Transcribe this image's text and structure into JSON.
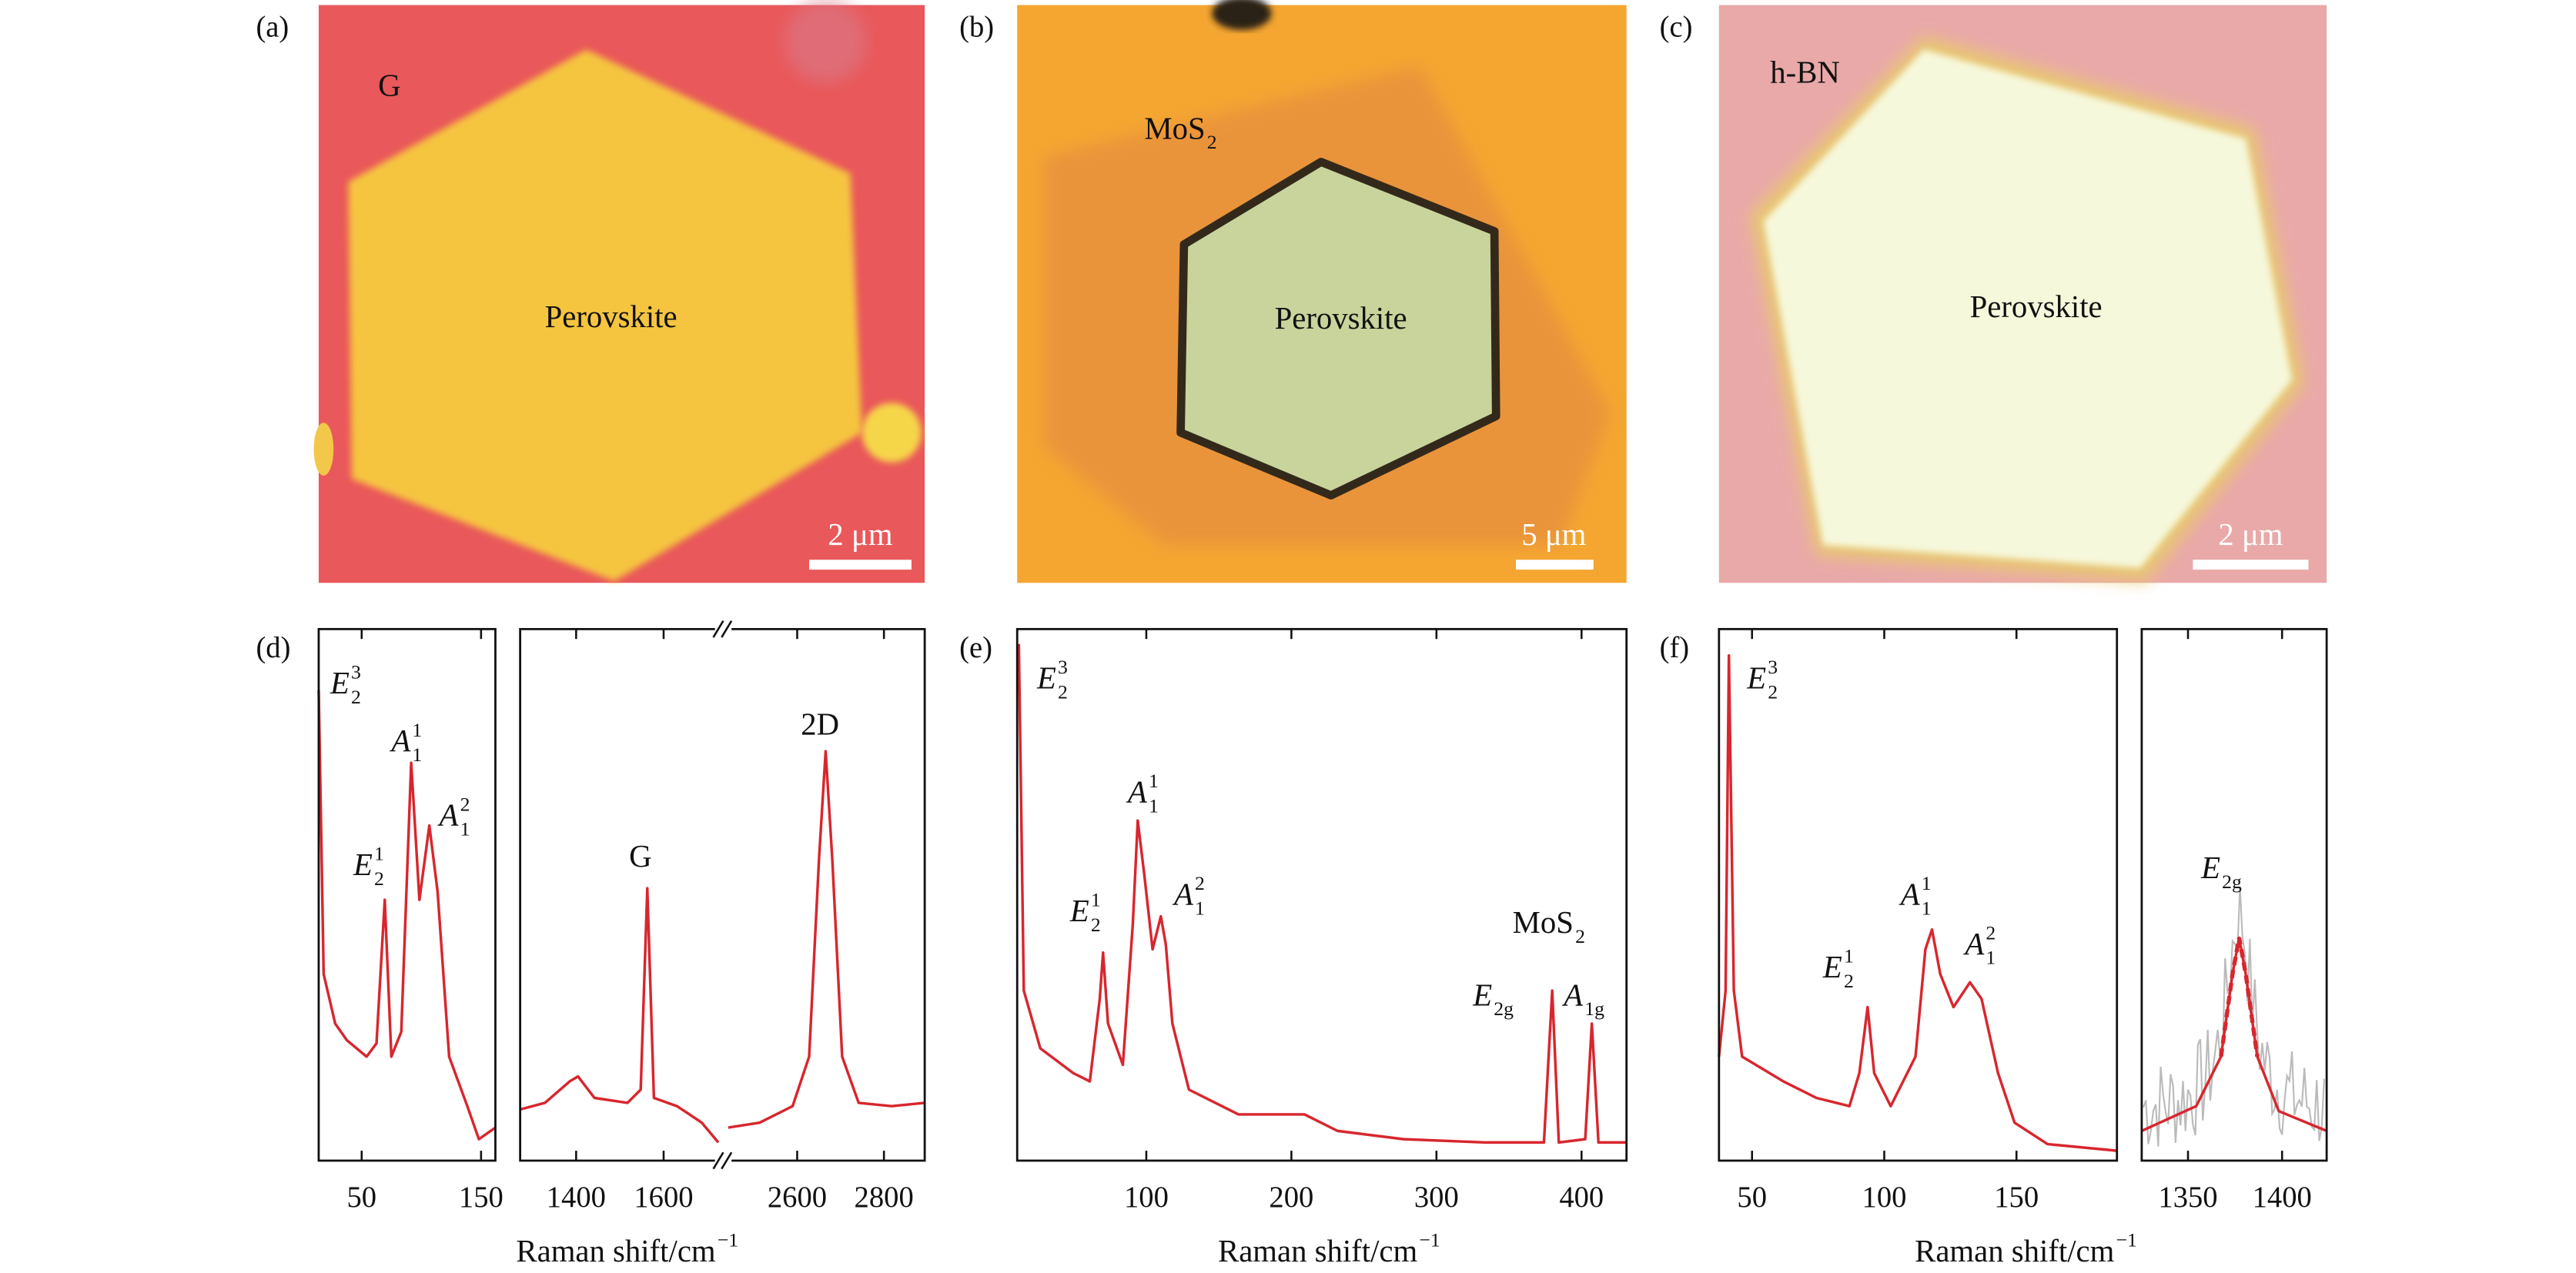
{
  "images": [
    {
      "letter": "(a)",
      "material": "G",
      "sample": "Perovskite",
      "scale_bar": "2 μm"
    },
    {
      "letter": "(b)",
      "material": {
        "base": "MoS",
        "sub": "2"
      },
      "sample": "Perovskite",
      "scale_bar": "5 μm"
    },
    {
      "letter": "(c)",
      "material": "h-BN",
      "sample": "Perovskite",
      "scale_bar": "2 μm"
    }
  ],
  "spectra": [
    {
      "letter": "(d)",
      "xlabel": {
        "base": "Raman shift/cm",
        "sup": "−1"
      },
      "subplots": [
        {
          "xlim": [
            14,
            162
          ],
          "xticks": [
            50,
            150
          ]
        },
        {
          "segments": [
            {
              "xlim": [
                1272,
                1725
              ],
              "xticks": [
                1400,
                1600
              ]
            },
            {
              "xlim": [
                2441,
                2894
              ],
              "xticks": [
                2600,
                2800
              ]
            }
          ]
        }
      ],
      "annotations": [
        {
          "base": "E",
          "sub": "2",
          "sup": "3",
          "italic": true
        },
        {
          "base": "E",
          "sub": "2",
          "sup": "1",
          "italic": true
        },
        {
          "base": "A",
          "sub": "1",
          "sup": "1",
          "italic": true
        },
        {
          "base": "A",
          "sub": "1",
          "sup": "2",
          "italic": true
        },
        {
          "base": "G"
        },
        {
          "base": "2D"
        }
      ]
    },
    {
      "letter": "(e)",
      "xlabel": {
        "base": "Raman shift/cm",
        "sup": "−1"
      },
      "subplots": [
        {
          "xlim": [
            11,
            431
          ],
          "xticks": [
            100,
            200,
            300,
            400
          ]
        }
      ],
      "annotations": [
        {
          "base": "E",
          "sub": "2",
          "sup": "3",
          "italic": true
        },
        {
          "base": "E",
          "sub": "2",
          "sup": "1",
          "italic": true
        },
        {
          "base": "A",
          "sub": "1",
          "sup": "1",
          "italic": true
        },
        {
          "base": "A",
          "sub": "1",
          "sup": "2",
          "italic": true
        },
        {
          "base": "MoS",
          "sub": "2"
        },
        {
          "base": "E",
          "sub": "2g",
          "italic": true
        },
        {
          "base": "A",
          "sub": "1g",
          "italic": true
        }
      ]
    },
    {
      "letter": "(f)",
      "xlabel": {
        "base": "Raman shift/cm",
        "sup": "−1"
      },
      "subplots": [
        {
          "xlim": [
            37.5,
            188
          ],
          "xticks": [
            50,
            100,
            150
          ]
        },
        {
          "xlim": [
            1325.4,
            1423.7
          ],
          "xticks": [
            1350,
            1400
          ]
        }
      ],
      "annotations": [
        {
          "base": "E",
          "sub": "2",
          "sup": "3",
          "italic": true
        },
        {
          "base": "E",
          "sub": "2",
          "sup": "1",
          "italic": true
        },
        {
          "base": "A",
          "sub": "1",
          "sup": "1",
          "italic": true
        },
        {
          "base": "A",
          "sub": "1",
          "sup": "2",
          "italic": true
        },
        {
          "base": "E",
          "sub": "2g",
          "italic": true
        }
      ]
    }
  ]
}
